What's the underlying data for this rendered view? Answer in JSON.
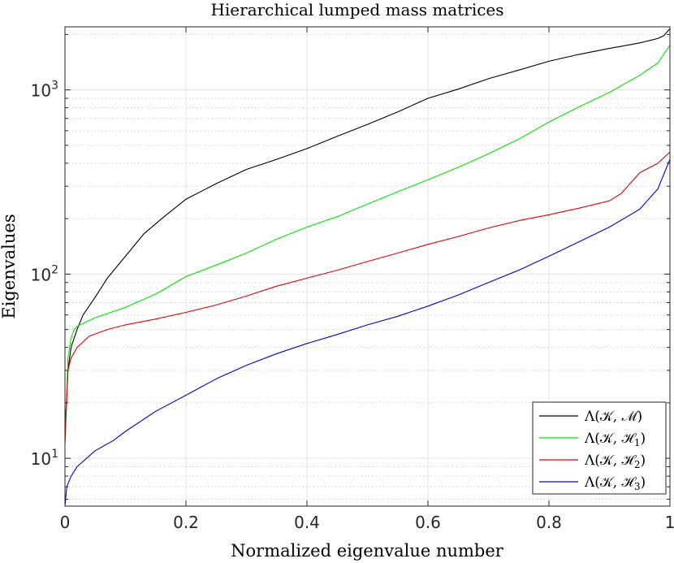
{
  "chart_data": {
    "type": "line",
    "title": "Hierarchical lumped mass matrices",
    "xlabel": "Normalized eigenvalue number",
    "ylabel": "Eigenvalues",
    "xlim": [
      0,
      1
    ],
    "ylim": [
      5.5,
      2200
    ],
    "yscale": "log",
    "grid": true,
    "legend_position": "bottom-right",
    "x_ticks": [
      "0",
      "0.2",
      "0.4",
      "0.6",
      "0.8",
      "1"
    ],
    "x_tick_values": [
      0,
      0.2,
      0.4,
      0.6,
      0.8,
      1
    ],
    "y_ticks": [
      {
        "base": "10",
        "exp": "1",
        "value": 10
      },
      {
        "base": "10",
        "exp": "2",
        "value": 100
      },
      {
        "base": "10",
        "exp": "3",
        "value": 1000
      }
    ],
    "series": [
      {
        "name": "Λ(𝒦, ℳ)",
        "legend_main": "Λ(𝒦, ℳ)",
        "legend_sub": "",
        "color": "#000000",
        "x": [
          0,
          0.005,
          0.01,
          0.02,
          0.03,
          0.05,
          0.07,
          0.1,
          0.13,
          0.16,
          0.2,
          0.25,
          0.3,
          0.35,
          0.4,
          0.45,
          0.5,
          0.55,
          0.6,
          0.65,
          0.7,
          0.75,
          0.8,
          0.85,
          0.9,
          0.95,
          0.98,
          0.99,
          1
        ],
        "y": [
          14,
          30,
          40,
          50,
          60,
          75,
          95,
          125,
          165,
          200,
          255,
          310,
          370,
          420,
          480,
          560,
          650,
          760,
          900,
          1010,
          1150,
          1280,
          1430,
          1560,
          1680,
          1800,
          1900,
          1970,
          2150
        ]
      },
      {
        "name": "Λ(𝒦, ℋ₁)",
        "legend_main": "Λ(𝒦, ℋ",
        "legend_sub": "1",
        "color": "#00e600",
        "x": [
          0,
          0.005,
          0.01,
          0.015,
          0.02,
          0.03,
          0.05,
          0.1,
          0.15,
          0.2,
          0.25,
          0.3,
          0.35,
          0.4,
          0.45,
          0.5,
          0.55,
          0.6,
          0.65,
          0.7,
          0.75,
          0.8,
          0.85,
          0.9,
          0.95,
          0.98,
          1
        ],
        "y": [
          12,
          35,
          45,
          50,
          52,
          54,
          58,
          66,
          78,
          97,
          112,
          130,
          155,
          180,
          205,
          240,
          280,
          325,
          380,
          450,
          540,
          670,
          810,
          970,
          1200,
          1400,
          1750
        ]
      },
      {
        "name": "Λ(𝒦, ℋ₂)",
        "legend_main": "Λ(𝒦, ℋ",
        "legend_sub": "2",
        "color": "#e60000",
        "x": [
          0,
          0.005,
          0.01,
          0.02,
          0.04,
          0.07,
          0.1,
          0.15,
          0.2,
          0.25,
          0.3,
          0.35,
          0.4,
          0.45,
          0.5,
          0.55,
          0.6,
          0.65,
          0.7,
          0.75,
          0.8,
          0.85,
          0.9,
          0.92,
          0.95,
          0.98,
          1
        ],
        "y": [
          12,
          30,
          35,
          40,
          46,
          50,
          53,
          57,
          62,
          68,
          76,
          86,
          95,
          105,
          117,
          130,
          145,
          160,
          178,
          195,
          210,
          228,
          250,
          275,
          355,
          400,
          460
        ]
      },
      {
        "name": "Λ(𝒦, ℋ₃)",
        "legend_main": "Λ(𝒦, ℋ",
        "legend_sub": "3",
        "color": "#0000e6",
        "x": [
          0,
          0.003,
          0.01,
          0.02,
          0.05,
          0.08,
          0.1,
          0.15,
          0.2,
          0.25,
          0.3,
          0.35,
          0.4,
          0.45,
          0.5,
          0.55,
          0.6,
          0.65,
          0.7,
          0.75,
          0.8,
          0.85,
          0.9,
          0.95,
          0.98,
          1
        ],
        "y": [
          5.5,
          7,
          8,
          9,
          11,
          12.5,
          14,
          18,
          22,
          27,
          32,
          37,
          42,
          47,
          53,
          59,
          67,
          77,
          90,
          105,
          125,
          150,
          180,
          225,
          290,
          420
        ]
      }
    ]
  }
}
